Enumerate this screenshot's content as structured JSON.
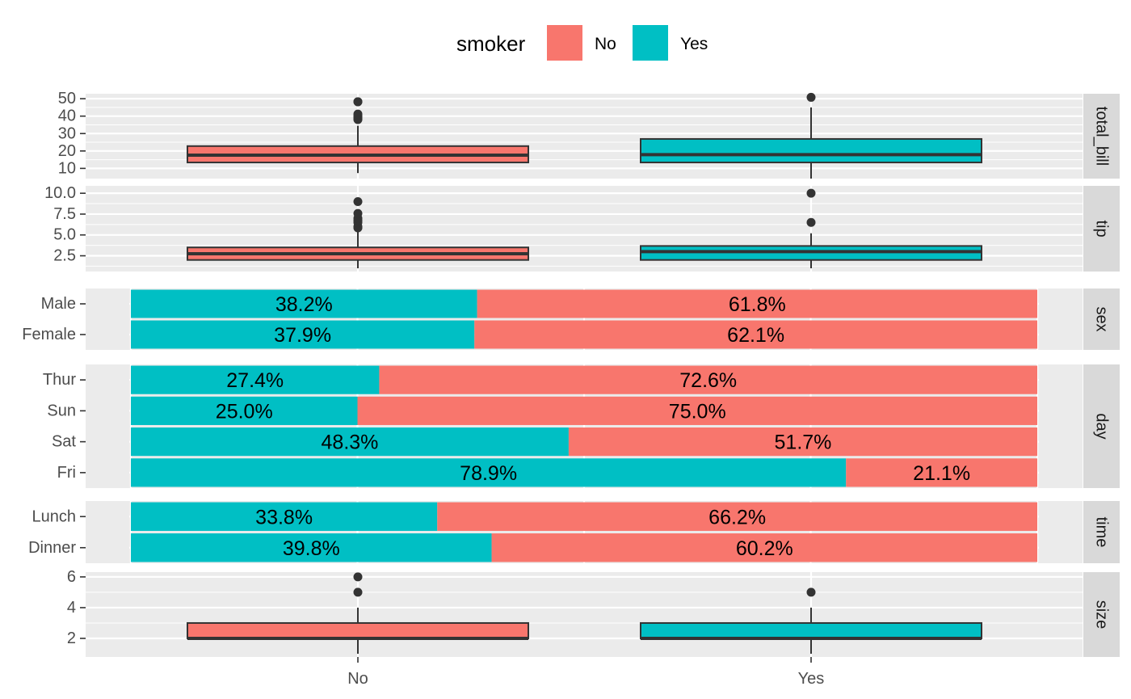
{
  "colors": {
    "No": "#F8766D",
    "Yes": "#00BFC4",
    "panel_bg": "#EBEBEB",
    "grid": "#FFFFFF",
    "strip_bg": "#D9D9D9",
    "box_line": "#333333"
  },
  "legend": {
    "title": "smoker",
    "items": [
      {
        "key": "No",
        "label": "No"
      },
      {
        "key": "Yes",
        "label": "Yes"
      }
    ]
  },
  "chart_data": {
    "type": "faceted-pairs",
    "x_categories": [
      "No",
      "Yes"
    ],
    "panels": [
      {
        "strip": "total_bill",
        "kind": "box",
        "ylim": [
          6,
          51
        ],
        "ticks": [
          {
            "value": 10,
            "label": "10"
          },
          {
            "value": 20,
            "label": "20"
          },
          {
            "value": 30,
            "label": "30"
          },
          {
            "value": 40,
            "label": "40"
          },
          {
            "value": 50,
            "label": "50"
          }
        ],
        "boxes": [
          {
            "group": "No",
            "q1": 13.4,
            "median": 17.6,
            "q3": 22.8,
            "lower": 7.3,
            "upper": 34.5,
            "outliers": [
              38.0,
              38.7,
              39.4,
              40.2,
              41.2,
              48.2,
              48.3
            ]
          },
          {
            "group": "Yes",
            "q1": 13.4,
            "median": 17.9,
            "q3": 26.9,
            "lower": 3.1,
            "upper": 45.0,
            "outliers": [
              50.8
            ]
          }
        ]
      },
      {
        "strip": "tip",
        "kind": "box",
        "ylim": [
          1,
          10.5
        ],
        "ticks": [
          {
            "value": 2.5,
            "label": "2.5"
          },
          {
            "value": 5.0,
            "label": "5.0"
          },
          {
            "value": 7.5,
            "label": "7.5"
          },
          {
            "value": 10.0,
            "label": "10.0"
          }
        ],
        "boxes": [
          {
            "group": "No",
            "q1": 2.0,
            "median": 2.74,
            "q3": 3.5,
            "lower": 1.0,
            "upper": 5.8,
            "outliers": [
              5.85,
              6.0,
              6.5,
              6.73,
              7.0,
              7.58,
              9.0
            ]
          },
          {
            "group": "Yes",
            "q1": 2.0,
            "median": 3.0,
            "q3": 3.68,
            "lower": 1.0,
            "upper": 5.2,
            "outliers": [
              6.5,
              10.0
            ]
          }
        ]
      },
      {
        "strip": "sex",
        "kind": "stacked-percent",
        "rows": [
          {
            "label": "Male",
            "Yes": 38.2,
            "No": 61.8,
            "yes_label": "38.2%",
            "no_label": "61.8%"
          },
          {
            "label": "Female",
            "Yes": 37.9,
            "No": 62.1,
            "yes_label": "37.9%",
            "no_label": "62.1%"
          }
        ]
      },
      {
        "strip": "day",
        "kind": "stacked-percent",
        "rows": [
          {
            "label": "Thur",
            "Yes": 27.4,
            "No": 72.6,
            "yes_label": "27.4%",
            "no_label": "72.6%"
          },
          {
            "label": "Sun",
            "Yes": 25.0,
            "No": 75.0,
            "yes_label": "25.0%",
            "no_label": "75.0%"
          },
          {
            "label": "Sat",
            "Yes": 48.3,
            "No": 51.7,
            "yes_label": "48.3%",
            "no_label": "51.7%"
          },
          {
            "label": "Fri",
            "Yes": 78.9,
            "No": 21.1,
            "yes_label": "78.9%",
            "no_label": "21.1%"
          }
        ]
      },
      {
        "strip": "time",
        "kind": "stacked-percent",
        "rows": [
          {
            "label": "Lunch",
            "Yes": 33.8,
            "No": 66.2,
            "yes_label": "33.8%",
            "no_label": "66.2%"
          },
          {
            "label": "Dinner",
            "Yes": 39.8,
            "No": 60.2,
            "yes_label": "39.8%",
            "no_label": "60.2%"
          }
        ]
      },
      {
        "strip": "size",
        "kind": "box",
        "ylim": [
          1,
          6.1
        ],
        "ticks": [
          {
            "value": 2,
            "label": "2"
          },
          {
            "value": 4,
            "label": "4"
          },
          {
            "value": 6,
            "label": "6"
          }
        ],
        "boxes": [
          {
            "group": "No",
            "q1": 2,
            "median": 2,
            "q3": 3,
            "lower": 1,
            "upper": 4,
            "outliers": [
              5,
              6
            ]
          },
          {
            "group": "Yes",
            "q1": 2,
            "median": 2,
            "q3": 3,
            "lower": 1,
            "upper": 4,
            "outliers": [
              5
            ]
          }
        ]
      }
    ]
  }
}
